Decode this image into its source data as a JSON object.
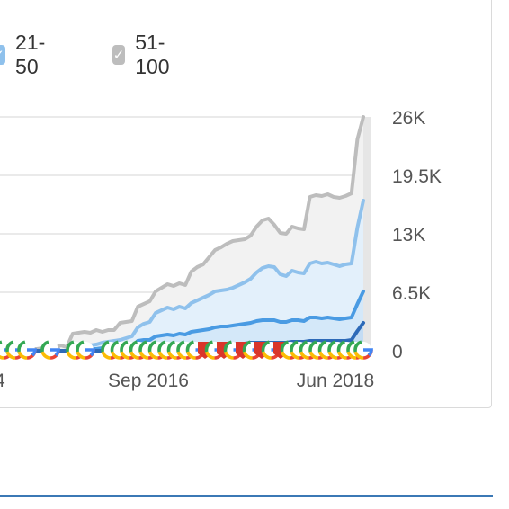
{
  "legend": [
    {
      "label": "21-50",
      "color": "#8fc1ec",
      "checked": true
    },
    {
      "label": "51-100",
      "color": "#bdbdbd",
      "checked": true
    }
  ],
  "chart_data": {
    "type": "area",
    "x_tick_labels": [
      "4",
      "Sep 2016",
      "Jun 2018"
    ],
    "y_tick_labels": [
      "26K",
      "19.5K",
      "13K",
      "6.5K",
      "0"
    ],
    "ylim": [
      0,
      26000
    ],
    "y_position": "right",
    "grid": true,
    "series": [
      {
        "name": "51-100",
        "color": "#bdbdbd",
        "values": [
          0,
          0,
          0,
          0,
          0,
          200,
          200,
          200,
          300,
          200,
          300,
          600,
          400,
          1900,
          2000,
          2100,
          2000,
          2300,
          2100,
          2300,
          2300,
          3100,
          3200,
          3300,
          4900,
          5200,
          5500,
          6600,
          7000,
          7400,
          7200,
          7500,
          7300,
          8800,
          9300,
          9600,
          10400,
          11200,
          11500,
          11900,
          12200,
          12300,
          12400,
          12800,
          13800,
          14500,
          14700,
          14000,
          13100,
          13000,
          13800,
          13600,
          13500,
          17100,
          17300,
          17200,
          17400,
          17100,
          17000,
          17200,
          17500,
          23500,
          26000
        ]
      },
      {
        "name": "21-50",
        "color": "#8fc1ec",
        "values": [
          0,
          0,
          0,
          0,
          0,
          0,
          0,
          0,
          0,
          0,
          0,
          0,
          0,
          200,
          300,
          400,
          600,
          700,
          900,
          1000,
          1100,
          1200,
          1400,
          1600,
          2600,
          3000,
          3200,
          4200,
          4500,
          4800,
          4600,
          4900,
          4700,
          5300,
          5600,
          5900,
          6200,
          6600,
          6700,
          6800,
          7000,
          7300,
          7600,
          8000,
          8700,
          9200,
          9400,
          9300,
          8500,
          8300,
          8900,
          8700,
          8600,
          9700,
          9900,
          9700,
          9800,
          9600,
          9400,
          9600,
          9700,
          13700,
          16700
        ]
      },
      {
        "name": "",
        "color": "#4a9be3",
        "values": [
          0,
          0,
          0,
          0,
          0,
          0,
          0,
          0,
          0,
          0,
          0,
          0,
          0,
          100,
          100,
          100,
          200,
          200,
          300,
          300,
          400,
          400,
          500,
          500,
          1100,
          1200,
          1200,
          1600,
          1700,
          1800,
          1700,
          1900,
          1800,
          2100,
          2200,
          2300,
          2400,
          2600,
          2700,
          2700,
          2800,
          2900,
          3000,
          3100,
          3300,
          3400,
          3400,
          3400,
          3200,
          3200,
          3400,
          3400,
          3300,
          3700,
          3700,
          3600,
          3700,
          3600,
          3500,
          3600,
          3700,
          5200,
          6600
        ]
      },
      {
        "name": "",
        "color": "#2d6ab8",
        "values": [
          0,
          0,
          0,
          0,
          0,
          0,
          0,
          0,
          0,
          0,
          0,
          0,
          0,
          0,
          0,
          0,
          0,
          0,
          0,
          0,
          100,
          100,
          100,
          100,
          300,
          300,
          300,
          400,
          400,
          400,
          400,
          500,
          500,
          600,
          600,
          600,
          600,
          700,
          700,
          700,
          800,
          800,
          800,
          900,
          900,
          900,
          900,
          900,
          900,
          900,
          1000,
          1000,
          1000,
          1100,
          1100,
          1100,
          1100,
          1100,
          1100,
          1100,
          1200,
          2200,
          3100
        ]
      }
    ],
    "google_markers_visible": true
  }
}
